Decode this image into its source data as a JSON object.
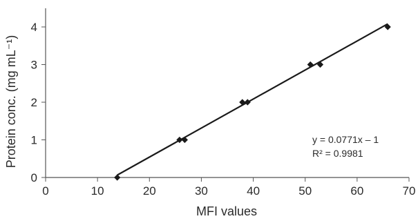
{
  "chart_data": {
    "type": "scatter",
    "xlabel": "MFI values",
    "ylabel": "Protein conc. (mg mL⁻¹)",
    "xlim": [
      0,
      70
    ],
    "ylim": [
      0,
      4.3
    ],
    "x_ticks": [
      0,
      10,
      20,
      30,
      40,
      50,
      60,
      70
    ],
    "y_ticks": [
      0,
      1,
      2,
      3,
      4
    ],
    "grid": false,
    "legend": "none",
    "series": [
      {
        "marker": "diamond",
        "color": "#1a1a1a",
        "points": [
          {
            "x": 13.8,
            "y": 0
          },
          {
            "x": 25.8,
            "y": 1
          },
          {
            "x": 26.8,
            "y": 1
          },
          {
            "x": 37.9,
            "y": 2
          },
          {
            "x": 38.9,
            "y": 2
          },
          {
            "x": 51.0,
            "y": 3
          },
          {
            "x": 52.9,
            "y": 3
          },
          {
            "x": 65.9,
            "y": 4
          }
        ]
      }
    ],
    "trendline": {
      "slope": 0.0771,
      "intercept": -1,
      "x_range": [
        13.8,
        65.9
      ],
      "color": "#1a1a1a"
    },
    "annotations": {
      "equation": "y = 0.0771x – 1",
      "r_squared": "R² = 0.9981"
    }
  }
}
